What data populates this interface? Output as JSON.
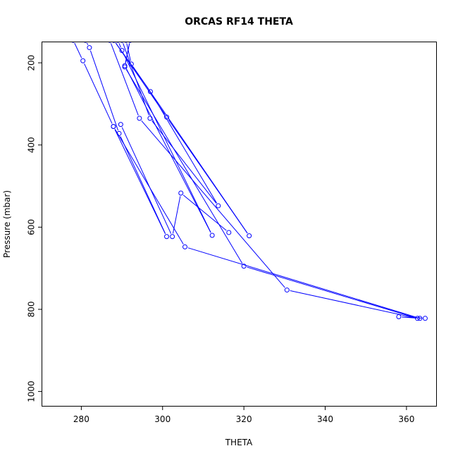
{
  "chart_data": {
    "type": "line",
    "title": "ORCAS RF14 THETA",
    "xlabel": "THETA",
    "ylabel": "Pressure (mbar)",
    "xlim": [
      270.4,
      367.3
    ],
    "ylim": [
      1035,
      150
    ],
    "y_reversed": true,
    "x_ticks": [
      280,
      300,
      320,
      340,
      360
    ],
    "y_ticks": [
      200,
      400,
      600,
      800,
      1000
    ],
    "grid": false,
    "legend": "none",
    "color": "#0000ff",
    "series": [
      {
        "points": [
          {
            "x": 278,
            "y": 145
          },
          {
            "x": 280.4,
            "y": 195
          },
          {
            "x": 287.9,
            "y": 355
          },
          {
            "x": 301,
            "y": 623
          },
          {
            "x": 289.3,
            "y": 372
          },
          {
            "x": 282,
            "y": 163
          },
          {
            "x": 281,
            "y": 145
          }
        ]
      },
      {
        "points": [
          {
            "x": 292,
            "y": 145
          },
          {
            "x": 290.7,
            "y": 207
          },
          {
            "x": 312.2,
            "y": 620
          },
          {
            "x": 290,
            "y": 170
          },
          {
            "x": 289,
            "y": 145
          }
        ]
      },
      {
        "points": [
          {
            "x": 288,
            "y": 145
          },
          {
            "x": 301,
            "y": 332
          },
          {
            "x": 321.3,
            "y": 621
          },
          {
            "x": 292.3,
            "y": 203
          },
          {
            "x": 291,
            "y": 145
          }
        ]
      },
      {
        "points": [
          {
            "x": 287,
            "y": 145
          },
          {
            "x": 294.3,
            "y": 335
          },
          {
            "x": 330.6,
            "y": 753
          },
          {
            "x": 362.7,
            "y": 822
          },
          {
            "x": 320,
            "y": 695
          },
          {
            "x": 290.7,
            "y": 210
          },
          {
            "x": 292,
            "y": 145
          }
        ]
      },
      {
        "points": [
          {
            "x": 290,
            "y": 145
          },
          {
            "x": 296.9,
            "y": 335
          },
          {
            "x": 313.7,
            "y": 548
          },
          {
            "x": 297,
            "y": 270
          },
          {
            "x": 288,
            "y": 145
          }
        ]
      },
      {
        "points": [
          {
            "x": 289.7,
            "y": 350
          },
          {
            "x": 302.4,
            "y": 623
          },
          {
            "x": 304.5,
            "y": 517
          },
          {
            "x": 316.3,
            "y": 613
          }
        ]
      },
      {
        "points": [
          {
            "x": 287.9,
            "y": 355
          },
          {
            "x": 305.5,
            "y": 648
          },
          {
            "x": 363.3,
            "y": 822
          },
          {
            "x": 358.1,
            "y": 818
          },
          {
            "x": 364.6,
            "y": 822
          }
        ]
      }
    ]
  }
}
